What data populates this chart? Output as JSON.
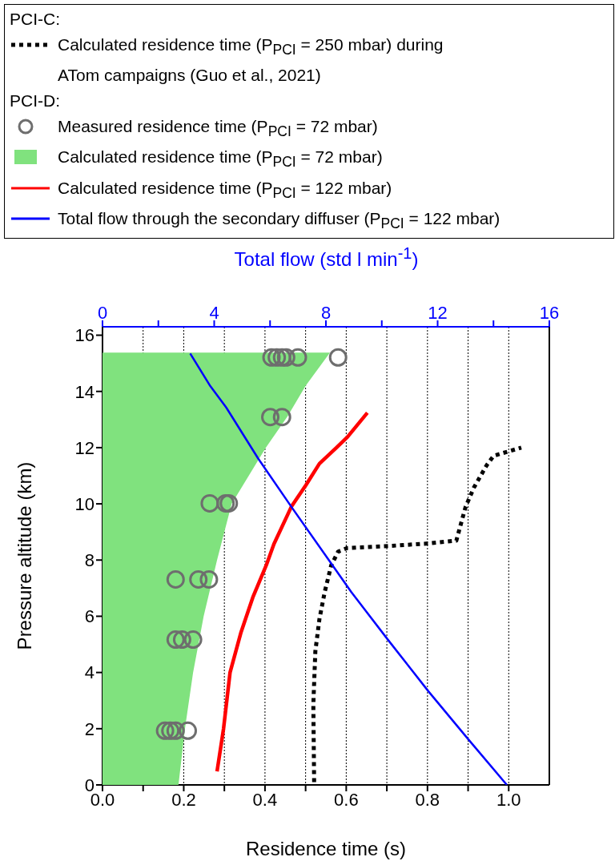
{
  "chart_data": {
    "type": "line",
    "xlabel": "Residence time (s)",
    "ylabel": "Pressure altitude (km)",
    "x2label": "Total flow (std l min$^{-1}$)",
    "annotations": [
      "PCI-C:",
      "PCI-D:"
    ],
    "xlim": [
      0,
      1.1
    ],
    "xticks": [
      {
        "value": 0,
        "label": "0.0"
      },
      {
        "value": 0.1,
        "label": null
      },
      {
        "value": 0.2,
        "label": "0.2"
      },
      {
        "value": 0.3,
        "label": null
      },
      {
        "value": 0.4,
        "label": "0.4"
      },
      {
        "value": 0.5,
        "label": null
      },
      {
        "value": 0.6,
        "label": "0.6"
      },
      {
        "value": 0.7,
        "label": null
      },
      {
        "value": 0.8,
        "label": "0.8"
      },
      {
        "value": 0.9,
        "label": null
      },
      {
        "value": 1,
        "label": "1.0"
      }
    ],
    "x2lim": [
      0,
      16
    ],
    "x2ticks": [
      0,
      {
        "value": 2,
        "label": null
      },
      4,
      {
        "value": 6,
        "label": null
      },
      8,
      {
        "value": 10,
        "label": null
      },
      12,
      {
        "value": 14,
        "label": null
      },
      16
    ],
    "ylim": [
      0,
      16.3
    ],
    "yticks": [
      0,
      2,
      4,
      6,
      8,
      10,
      12,
      14,
      16
    ],
    "grid": "x",
    "legend": "top",
    "series": [
      {
        "name": "Calculated residence time (P$_{PCI}$ = 250 mbar) during ATom campaigns (Guo et al., 2021)",
        "color": "#000000",
        "line_style": "dotted",
        "marker": "none",
        "x": [
          0.521,
          0.519,
          0.524,
          0.534,
          0.547,
          0.563,
          0.58,
          0.603,
          0.704,
          0.802,
          0.871,
          0.894,
          0.914,
          0.946,
          0.963,
          1.031
        ],
        "values": [
          0.1,
          2.86,
          4.76,
          5.9,
          6.86,
          7.81,
          8.3,
          8.43,
          8.5,
          8.59,
          8.69,
          9.9,
          10.57,
          11.38,
          11.71,
          12.0
        ]
      },
      {
        "type": "scatter",
        "name": "Measured residence time (P$_{PCI}$ = 72 mbar)",
        "color": "#6e6e6e",
        "marker": "circle",
        "x": [
          0.154,
          0.167,
          0.18,
          0.21,
          0.18,
          0.196,
          0.223,
          0.18,
          0.236,
          0.262,
          0.264,
          0.303,
          0.311,
          0.413,
          0.442,
          0.416,
          0.429,
          0.442,
          0.452,
          0.481,
          0.58
        ],
        "values": [
          1.93,
          1.93,
          1.93,
          1.93,
          5.17,
          5.17,
          5.17,
          7.31,
          7.31,
          7.31,
          10.02,
          10.02,
          10.02,
          13.09,
          13.09,
          15.21,
          15.21,
          15.21,
          15.21,
          15.21,
          15.21
        ]
      },
      {
        "type": "area",
        "name": "Calculated residence time (P$_{PCI}$ = 72 mbar)",
        "color": "#80e27e",
        "x": [
          0,
          0.187,
          0.203,
          0.223,
          0.249,
          0.282,
          0.318,
          0.402,
          0.455,
          0.5,
          0.56,
          0
        ],
        "values": [
          0,
          0,
          2,
          4,
          6,
          8,
          10,
          12,
          13.1,
          14.2,
          15.38,
          15.38
        ]
      },
      {
        "name": "Calculated residence time (P$_{PCI}$ = 122 mbar)",
        "color": "#ff0000",
        "line_style": "solid",
        "marker": "none",
        "x": [
          0.282,
          0.298,
          0.314,
          0.341,
          0.37,
          0.403,
          0.422,
          0.465,
          0.501,
          0.534,
          0.576,
          0.603,
          0.652
        ],
        "values": [
          0.48,
          2.0,
          4.0,
          5.43,
          6.67,
          7.81,
          8.57,
          9.9,
          10.67,
          11.43,
          12.0,
          12.38,
          13.24
        ]
      },
      {
        "axis": "x2",
        "name": "Total flow through the secondary diffuser (P$_{PCI}$ = 122 mbar)",
        "color": "#0000ff",
        "line_style": "solid",
        "marker": "none",
        "x": [
          3.14,
          3.86,
          4.43,
          5.57,
          6.76,
          8.24,
          8.91,
          10.24,
          11.67,
          13.1,
          14.48
        ],
        "values": [
          15.35,
          14.19,
          13.43,
          11.62,
          9.9,
          7.81,
          6.86,
          5.14,
          3.33,
          1.62,
          0
        ]
      }
    ]
  }
}
